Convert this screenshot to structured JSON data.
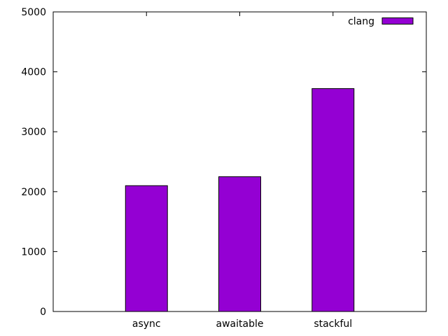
{
  "chart_data": {
    "type": "bar",
    "categories": [
      "async",
      "awaitable",
      "stackful"
    ],
    "series": [
      {
        "name": "clang",
        "values": [
          2100,
          2250,
          3720
        ],
        "color": "#9400d3"
      }
    ],
    "ylim": [
      0,
      5000
    ],
    "yticks": [
      0,
      1000,
      2000,
      3000,
      4000,
      5000
    ],
    "xlim": [
      -1,
      3
    ],
    "grid": false,
    "legend_position": "top-right"
  }
}
